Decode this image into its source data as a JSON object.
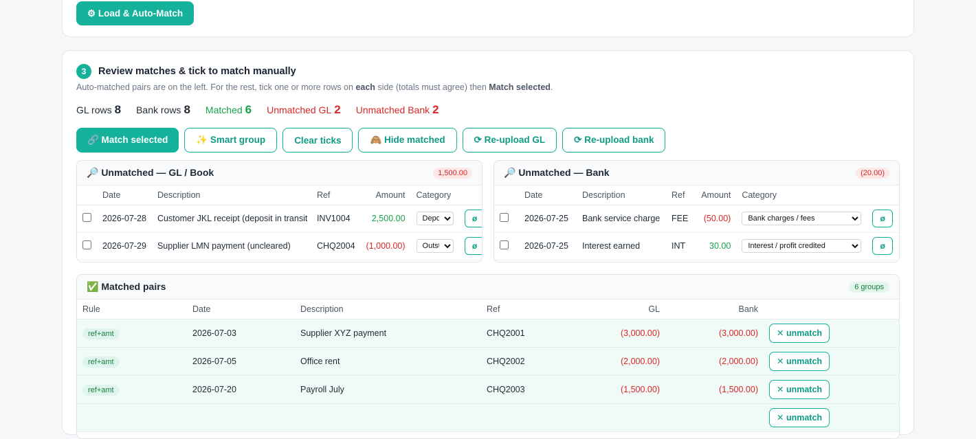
{
  "top": {
    "load_button": "⚙ Load & Auto-Match"
  },
  "step": {
    "number": "3",
    "title": "Review matches & tick to match manually",
    "help_pre": "Auto-matched pairs are on the left. For the rest, tick one or more rows on ",
    "help_bold1": "each",
    "help_mid": " side (totals must agree) then ",
    "help_bold2": "Match selected",
    "help_post": "."
  },
  "stats": {
    "gl_rows_label": "GL rows",
    "gl_rows": "8",
    "bank_rows_label": "Bank rows",
    "bank_rows": "8",
    "matched_label": "Matched",
    "matched": "6",
    "unmatched_gl_label": "Unmatched GL",
    "unmatched_gl": "2",
    "unmatched_bank_label": "Unmatched Bank",
    "unmatched_bank": "2"
  },
  "toolbar": {
    "match_selected": "🔗 Match selected",
    "smart_group": "✨ Smart group",
    "clear_ticks": "Clear ticks",
    "hide_matched": "🙈 Hide matched",
    "reupload_gl": "⟳ Re-upload GL",
    "reupload_bank": "⟳ Re-upload bank"
  },
  "gl_panel": {
    "title": "🔎 Unmatched — GL / Book",
    "total": "1,500.00",
    "headers": {
      "date": "Date",
      "description": "Description",
      "ref": "Ref",
      "amount": "Amount",
      "category": "Category"
    },
    "rows": [
      {
        "date": "2026-07-28",
        "description": "Customer JKL receipt (deposit in transit",
        "ref": "INV1004",
        "amount": "2,500.00",
        "category": "Deposit"
      },
      {
        "date": "2026-07-29",
        "description": "Supplier LMN payment (uncleared)",
        "ref": "CHQ2004",
        "amount": "(1,000.00)",
        "category": "Outstanding"
      }
    ],
    "action_label": "ø"
  },
  "bank_panel": {
    "title": "🔎 Unmatched — Bank",
    "total": "(20.00)",
    "headers": {
      "date": "Date",
      "description": "Description",
      "ref": "Ref",
      "amount": "Amount",
      "category": "Category"
    },
    "rows": [
      {
        "date": "2026-07-25",
        "description": "Bank service charge",
        "ref": "FEE",
        "amount": "(50.00)",
        "category": "Bank charges / fees"
      },
      {
        "date": "2026-07-25",
        "description": "Interest earned",
        "ref": "INT",
        "amount": "30.00",
        "category": "Interest / profit credited"
      }
    ],
    "action_label": "ø"
  },
  "matched_panel": {
    "title": "✅ Matched pairs",
    "count": "6 groups",
    "headers": {
      "rule": "Rule",
      "date": "Date",
      "description": "Description",
      "ref": "Ref",
      "gl": "GL",
      "bank": "Bank"
    },
    "rows": [
      {
        "rule": "ref+amt",
        "date": "2026-07-03",
        "description": "Supplier XYZ payment",
        "ref": "CHQ2001",
        "gl": "(3,000.00)",
        "bank": "(3,000.00)"
      },
      {
        "rule": "ref+amt",
        "date": "2026-07-05",
        "description": "Office rent",
        "ref": "CHQ2002",
        "gl": "(2,000.00)",
        "bank": "(2,000.00)"
      },
      {
        "rule": "ref+amt",
        "date": "2026-07-20",
        "description": "Payroll July",
        "ref": "CHQ2003",
        "gl": "(1,500.00)",
        "bank": "(1,500.00)"
      }
    ],
    "unmatch_label": "✕ unmatch"
  }
}
